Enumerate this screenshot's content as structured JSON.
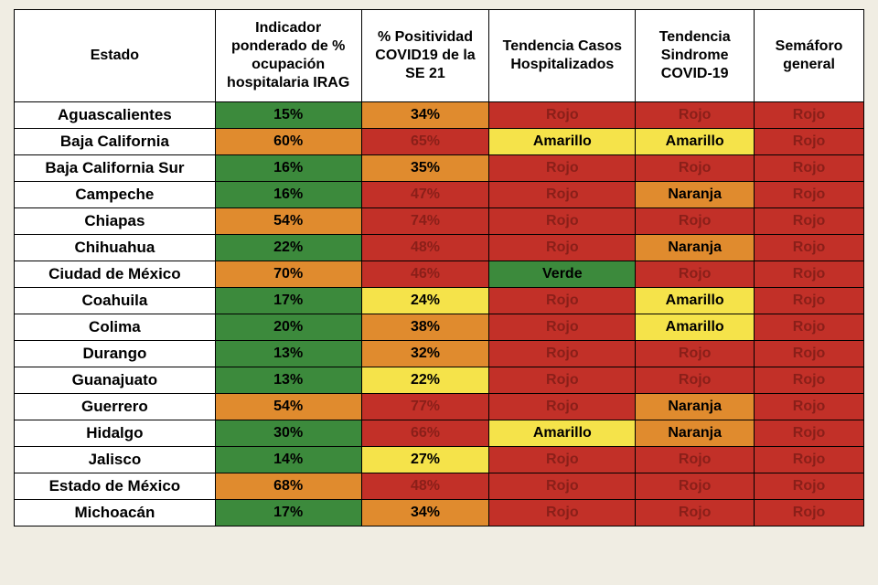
{
  "colors": {
    "verde": "#3c8a3c",
    "amarillo": "#f5e34a",
    "naranja": "#e08b2e",
    "rojo": "#c23028",
    "rojo_text_on_red": "#8a1f19",
    "black": "#000000"
  },
  "headers": {
    "estado": "Estado",
    "indicador": "Indicador ponderado de % ocupación hospitalaria IRAG",
    "positividad": "% Positividad COVID19 de la SE 21",
    "tendencia_casos": "Tendencia Casos Hospitalizados",
    "tendencia_sindrome": "Tendencia Sindrome COVID-19",
    "semaforo": "Semáforo general"
  },
  "rows": [
    {
      "estado": "Aguascalientes",
      "ind": {
        "v": "15%",
        "c": "verde"
      },
      "pos": {
        "v": "34%",
        "c": "naranja"
      },
      "tc": {
        "v": "Rojo",
        "c": "rojo"
      },
      "ts": {
        "v": "Rojo",
        "c": "rojo"
      },
      "sem": {
        "v": "Rojo",
        "c": "rojo"
      }
    },
    {
      "estado": "Baja California",
      "ind": {
        "v": "60%",
        "c": "naranja"
      },
      "pos": {
        "v": "65%",
        "c": "rojo"
      },
      "tc": {
        "v": "Amarillo",
        "c": "amarillo"
      },
      "ts": {
        "v": "Amarillo",
        "c": "amarillo"
      },
      "sem": {
        "v": "Rojo",
        "c": "rojo"
      }
    },
    {
      "estado": "Baja California Sur",
      "ind": {
        "v": "16%",
        "c": "verde"
      },
      "pos": {
        "v": "35%",
        "c": "naranja"
      },
      "tc": {
        "v": "Rojo",
        "c": "rojo"
      },
      "ts": {
        "v": "Rojo",
        "c": "rojo"
      },
      "sem": {
        "v": "Rojo",
        "c": "rojo"
      }
    },
    {
      "estado": "Campeche",
      "ind": {
        "v": "16%",
        "c": "verde"
      },
      "pos": {
        "v": "47%",
        "c": "rojo"
      },
      "tc": {
        "v": "Rojo",
        "c": "rojo"
      },
      "ts": {
        "v": "Naranja",
        "c": "naranja"
      },
      "sem": {
        "v": "Rojo",
        "c": "rojo"
      }
    },
    {
      "estado": "Chiapas",
      "ind": {
        "v": "54%",
        "c": "naranja"
      },
      "pos": {
        "v": "74%",
        "c": "rojo"
      },
      "tc": {
        "v": "Rojo",
        "c": "rojo"
      },
      "ts": {
        "v": "Rojo",
        "c": "rojo"
      },
      "sem": {
        "v": "Rojo",
        "c": "rojo"
      }
    },
    {
      "estado": "Chihuahua",
      "ind": {
        "v": "22%",
        "c": "verde"
      },
      "pos": {
        "v": "48%",
        "c": "rojo"
      },
      "tc": {
        "v": "Rojo",
        "c": "rojo"
      },
      "ts": {
        "v": "Naranja",
        "c": "naranja"
      },
      "sem": {
        "v": "Rojo",
        "c": "rojo"
      }
    },
    {
      "estado": "Ciudad de México",
      "ind": {
        "v": "70%",
        "c": "naranja"
      },
      "pos": {
        "v": "46%",
        "c": "rojo"
      },
      "tc": {
        "v": "Verde",
        "c": "verde"
      },
      "ts": {
        "v": "Rojo",
        "c": "rojo"
      },
      "sem": {
        "v": "Rojo",
        "c": "rojo"
      }
    },
    {
      "estado": "Coahuila",
      "ind": {
        "v": "17%",
        "c": "verde"
      },
      "pos": {
        "v": "24%",
        "c": "amarillo"
      },
      "tc": {
        "v": "Rojo",
        "c": "rojo"
      },
      "ts": {
        "v": "Amarillo",
        "c": "amarillo"
      },
      "sem": {
        "v": "Rojo",
        "c": "rojo"
      }
    },
    {
      "estado": "Colima",
      "ind": {
        "v": "20%",
        "c": "verde"
      },
      "pos": {
        "v": "38%",
        "c": "naranja"
      },
      "tc": {
        "v": "Rojo",
        "c": "rojo"
      },
      "ts": {
        "v": "Amarillo",
        "c": "amarillo"
      },
      "sem": {
        "v": "Rojo",
        "c": "rojo"
      }
    },
    {
      "estado": "Durango",
      "ind": {
        "v": "13%",
        "c": "verde"
      },
      "pos": {
        "v": "32%",
        "c": "naranja"
      },
      "tc": {
        "v": "Rojo",
        "c": "rojo"
      },
      "ts": {
        "v": "Rojo",
        "c": "rojo"
      },
      "sem": {
        "v": "Rojo",
        "c": "rojo"
      }
    },
    {
      "estado": "Guanajuato",
      "ind": {
        "v": "13%",
        "c": "verde"
      },
      "pos": {
        "v": "22%",
        "c": "amarillo"
      },
      "tc": {
        "v": "Rojo",
        "c": "rojo"
      },
      "ts": {
        "v": "Rojo",
        "c": "rojo"
      },
      "sem": {
        "v": "Rojo",
        "c": "rojo"
      }
    },
    {
      "estado": "Guerrero",
      "ind": {
        "v": "54%",
        "c": "naranja"
      },
      "pos": {
        "v": "77%",
        "c": "rojo"
      },
      "tc": {
        "v": "Rojo",
        "c": "rojo"
      },
      "ts": {
        "v": "Naranja",
        "c": "naranja"
      },
      "sem": {
        "v": "Rojo",
        "c": "rojo"
      }
    },
    {
      "estado": "Hidalgo",
      "ind": {
        "v": "30%",
        "c": "verde"
      },
      "pos": {
        "v": "66%",
        "c": "rojo"
      },
      "tc": {
        "v": "Amarillo",
        "c": "amarillo"
      },
      "ts": {
        "v": "Naranja",
        "c": "naranja"
      },
      "sem": {
        "v": "Rojo",
        "c": "rojo"
      }
    },
    {
      "estado": "Jalisco",
      "ind": {
        "v": "14%",
        "c": "verde"
      },
      "pos": {
        "v": "27%",
        "c": "amarillo"
      },
      "tc": {
        "v": "Rojo",
        "c": "rojo"
      },
      "ts": {
        "v": "Rojo",
        "c": "rojo"
      },
      "sem": {
        "v": "Rojo",
        "c": "rojo"
      }
    },
    {
      "estado": "Estado de México",
      "ind": {
        "v": "68%",
        "c": "naranja"
      },
      "pos": {
        "v": "48%",
        "c": "rojo"
      },
      "tc": {
        "v": "Rojo",
        "c": "rojo"
      },
      "ts": {
        "v": "Rojo",
        "c": "rojo"
      },
      "sem": {
        "v": "Rojo",
        "c": "rojo"
      }
    },
    {
      "estado": "Michoacán",
      "ind": {
        "v": "17%",
        "c": "verde"
      },
      "pos": {
        "v": "34%",
        "c": "naranja"
      },
      "tc": {
        "v": "Rojo",
        "c": "rojo"
      },
      "ts": {
        "v": "Rojo",
        "c": "rojo"
      },
      "sem": {
        "v": "Rojo",
        "c": "rojo"
      }
    }
  ]
}
